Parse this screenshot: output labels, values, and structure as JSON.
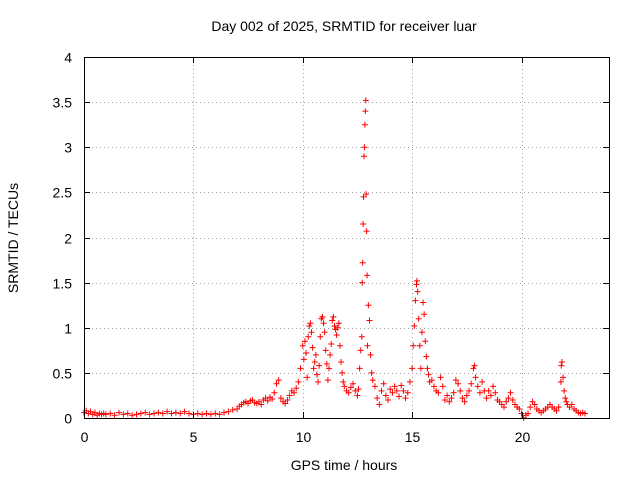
{
  "chart_data": {
    "type": "scatter",
    "title": "Day 002 of 2025, SRMTID for receiver luar",
    "xlabel": "GPS time / hours",
    "ylabel": "SRMTID / TECUs",
    "xlim": [
      0,
      24
    ],
    "ylim": [
      0,
      4
    ],
    "xticks": [
      0,
      5,
      10,
      15,
      20
    ],
    "yticks": [
      0,
      0.5,
      1,
      1.5,
      2,
      2.5,
      3,
      3.5,
      4
    ],
    "grid": true,
    "marker": "+",
    "color": "#ff0000",
    "series": [
      {
        "name": "SRMTID",
        "points": [
          [
            0.0,
            0.06
          ],
          [
            0.1,
            0.08
          ],
          [
            0.2,
            0.05
          ],
          [
            0.3,
            0.07
          ],
          [
            0.4,
            0.04
          ],
          [
            0.5,
            0.06
          ],
          [
            0.6,
            0.03
          ],
          [
            0.7,
            0.05
          ],
          [
            0.8,
            0.04
          ],
          [
            0.9,
            0.05
          ],
          [
            1.0,
            0.04
          ],
          [
            1.2,
            0.05
          ],
          [
            1.4,
            0.03
          ],
          [
            1.6,
            0.06
          ],
          [
            1.8,
            0.04
          ],
          [
            2.0,
            0.05
          ],
          [
            2.2,
            0.03
          ],
          [
            2.4,
            0.04
          ],
          [
            2.6,
            0.05
          ],
          [
            2.8,
            0.06
          ],
          [
            3.0,
            0.04
          ],
          [
            3.2,
            0.05
          ],
          [
            3.4,
            0.06
          ],
          [
            3.6,
            0.05
          ],
          [
            3.8,
            0.07
          ],
          [
            4.0,
            0.05
          ],
          [
            4.2,
            0.06
          ],
          [
            4.4,
            0.05
          ],
          [
            4.6,
            0.07
          ],
          [
            4.8,
            0.05
          ],
          [
            5.0,
            0.04
          ],
          [
            5.2,
            0.05
          ],
          [
            5.4,
            0.04
          ],
          [
            5.6,
            0.05
          ],
          [
            5.8,
            0.04
          ],
          [
            6.0,
            0.05
          ],
          [
            6.2,
            0.04
          ],
          [
            6.4,
            0.06
          ],
          [
            6.6,
            0.07
          ],
          [
            6.8,
            0.09
          ],
          [
            7.0,
            0.1
          ],
          [
            7.1,
            0.13
          ],
          [
            7.2,
            0.15
          ],
          [
            7.3,
            0.17
          ],
          [
            7.4,
            0.18
          ],
          [
            7.5,
            0.16
          ],
          [
            7.6,
            0.19
          ],
          [
            7.7,
            0.2
          ],
          [
            7.8,
            0.17
          ],
          [
            7.9,
            0.16
          ],
          [
            8.0,
            0.18
          ],
          [
            8.1,
            0.15
          ],
          [
            8.2,
            0.2
          ],
          [
            8.3,
            0.22
          ],
          [
            8.4,
            0.19
          ],
          [
            8.5,
            0.23
          ],
          [
            8.6,
            0.21
          ],
          [
            8.7,
            0.28
          ],
          [
            8.8,
            0.38
          ],
          [
            8.9,
            0.42
          ],
          [
            9.0,
            0.22
          ],
          [
            9.1,
            0.18
          ],
          [
            9.2,
            0.16
          ],
          [
            9.3,
            0.2
          ],
          [
            9.4,
            0.25
          ],
          [
            9.5,
            0.3
          ],
          [
            9.6,
            0.28
          ],
          [
            9.7,
            0.33
          ],
          [
            9.8,
            0.4
          ],
          [
            9.9,
            0.55
          ],
          [
            10.0,
            0.8
          ],
          [
            10.05,
            0.65
          ],
          [
            10.1,
            0.85
          ],
          [
            10.15,
            0.72
          ],
          [
            10.2,
            0.45
          ],
          [
            10.25,
            0.9
          ],
          [
            10.3,
            1.02
          ],
          [
            10.35,
            1.05
          ],
          [
            10.4,
            0.95
          ],
          [
            10.45,
            0.78
          ],
          [
            10.5,
            0.55
          ],
          [
            10.55,
            0.62
          ],
          [
            10.6,
            0.7
          ],
          [
            10.65,
            0.48
          ],
          [
            10.7,
            0.4
          ],
          [
            10.75,
            0.58
          ],
          [
            10.8,
            0.9
          ],
          [
            10.85,
            1.1
          ],
          [
            10.9,
            1.12
          ],
          [
            10.95,
            1.05
          ],
          [
            11.0,
            0.95
          ],
          [
            11.05,
            0.75
          ],
          [
            11.1,
            0.6
          ],
          [
            11.15,
            0.42
          ],
          [
            11.2,
            0.55
          ],
          [
            11.25,
            0.7
          ],
          [
            11.3,
            0.82
          ],
          [
            11.35,
            1.08
          ],
          [
            11.4,
            1.12
          ],
          [
            11.45,
            1.02
          ],
          [
            11.5,
            0.98
          ],
          [
            11.55,
            0.92
          ],
          [
            11.6,
            1.0
          ],
          [
            11.65,
            1.05
          ],
          [
            11.7,
            0.8
          ],
          [
            11.75,
            0.62
          ],
          [
            11.8,
            0.5
          ],
          [
            11.85,
            0.4
          ],
          [
            11.9,
            0.35
          ],
          [
            12.0,
            0.3
          ],
          [
            12.1,
            0.28
          ],
          [
            12.2,
            0.34
          ],
          [
            12.3,
            0.38
          ],
          [
            12.4,
            0.3
          ],
          [
            12.5,
            0.25
          ],
          [
            12.55,
            0.32
          ],
          [
            12.6,
            0.55
          ],
          [
            12.65,
            0.75
          ],
          [
            12.7,
            0.9
          ],
          [
            12.72,
            1.5
          ],
          [
            12.74,
            1.72
          ],
          [
            12.76,
            2.15
          ],
          [
            12.78,
            2.45
          ],
          [
            12.8,
            2.9
          ],
          [
            12.82,
            3.0
          ],
          [
            12.84,
            3.25
          ],
          [
            12.86,
            3.4
          ],
          [
            12.88,
            3.52
          ],
          [
            12.9,
            2.48
          ],
          [
            12.92,
            2.07
          ],
          [
            12.94,
            1.58
          ],
          [
            12.96,
            0.8
          ],
          [
            13.0,
            1.25
          ],
          [
            13.05,
            1.08
          ],
          [
            13.1,
            0.7
          ],
          [
            13.15,
            0.5
          ],
          [
            13.2,
            0.42
          ],
          [
            13.3,
            0.35
          ],
          [
            13.4,
            0.22
          ],
          [
            13.5,
            0.15
          ],
          [
            13.6,
            0.3
          ],
          [
            13.7,
            0.38
          ],
          [
            13.8,
            0.25
          ],
          [
            13.9,
            0.2
          ],
          [
            14.0,
            0.32
          ],
          [
            14.1,
            0.28
          ],
          [
            14.2,
            0.35
          ],
          [
            14.3,
            0.3
          ],
          [
            14.4,
            0.24
          ],
          [
            14.5,
            0.36
          ],
          [
            14.6,
            0.3
          ],
          [
            14.7,
            0.22
          ],
          [
            14.8,
            0.28
          ],
          [
            14.9,
            0.4
          ],
          [
            15.0,
            0.55
          ],
          [
            15.05,
            0.8
          ],
          [
            15.1,
            1.02
          ],
          [
            15.15,
            1.3
          ],
          [
            15.2,
            1.48
          ],
          [
            15.22,
            1.52
          ],
          [
            15.25,
            1.4
          ],
          [
            15.3,
            1.1
          ],
          [
            15.35,
            0.8
          ],
          [
            15.4,
            0.55
          ],
          [
            15.45,
            0.95
          ],
          [
            15.5,
            1.28
          ],
          [
            15.55,
            1.15
          ],
          [
            15.6,
            0.85
          ],
          [
            15.65,
            0.68
          ],
          [
            15.7,
            0.55
          ],
          [
            15.75,
            0.48
          ],
          [
            15.8,
            0.4
          ],
          [
            15.9,
            0.42
          ],
          [
            16.0,
            0.35
          ],
          [
            16.1,
            0.3
          ],
          [
            16.2,
            0.28
          ],
          [
            16.3,
            0.45
          ],
          [
            16.4,
            0.35
          ],
          [
            16.5,
            0.2
          ],
          [
            16.6,
            0.25
          ],
          [
            16.7,
            0.18
          ],
          [
            16.8,
            0.22
          ],
          [
            16.9,
            0.28
          ],
          [
            17.0,
            0.42
          ],
          [
            17.1,
            0.38
          ],
          [
            17.2,
            0.3
          ],
          [
            17.3,
            0.22
          ],
          [
            17.4,
            0.18
          ],
          [
            17.5,
            0.25
          ],
          [
            17.6,
            0.3
          ],
          [
            17.7,
            0.38
          ],
          [
            17.8,
            0.55
          ],
          [
            17.85,
            0.58
          ],
          [
            17.9,
            0.45
          ],
          [
            18.0,
            0.35
          ],
          [
            18.1,
            0.28
          ],
          [
            18.2,
            0.4
          ],
          [
            18.3,
            0.3
          ],
          [
            18.4,
            0.22
          ],
          [
            18.5,
            0.3
          ],
          [
            18.6,
            0.25
          ],
          [
            18.7,
            0.35
          ],
          [
            18.8,
            0.28
          ],
          [
            18.9,
            0.2
          ],
          [
            19.0,
            0.18
          ],
          [
            19.1,
            0.15
          ],
          [
            19.2,
            0.12
          ],
          [
            19.3,
            0.18
          ],
          [
            19.4,
            0.22
          ],
          [
            19.5,
            0.28
          ],
          [
            19.6,
            0.2
          ],
          [
            19.7,
            0.15
          ],
          [
            19.8,
            0.12
          ],
          [
            19.9,
            0.1
          ],
          [
            20.0,
            0.05
          ],
          [
            20.1,
            0.0
          ],
          [
            20.2,
            0.03
          ],
          [
            20.3,
            0.05
          ],
          [
            20.4,
            0.12
          ],
          [
            20.5,
            0.18
          ],
          [
            20.6,
            0.15
          ],
          [
            20.7,
            0.1
          ],
          [
            20.8,
            0.08
          ],
          [
            20.9,
            0.06
          ],
          [
            21.0,
            0.08
          ],
          [
            21.1,
            0.1
          ],
          [
            21.2,
            0.12
          ],
          [
            21.3,
            0.15
          ],
          [
            21.4,
            0.12
          ],
          [
            21.5,
            0.1
          ],
          [
            21.6,
            0.08
          ],
          [
            21.7,
            0.12
          ],
          [
            21.8,
            0.4
          ],
          [
            21.82,
            0.58
          ],
          [
            21.85,
            0.62
          ],
          [
            21.9,
            0.45
          ],
          [
            21.95,
            0.3
          ],
          [
            22.0,
            0.22
          ],
          [
            22.05,
            0.18
          ],
          [
            22.1,
            0.15
          ],
          [
            22.2,
            0.12
          ],
          [
            22.3,
            0.15
          ],
          [
            22.4,
            0.1
          ],
          [
            22.5,
            0.08
          ],
          [
            22.6,
            0.06
          ],
          [
            22.7,
            0.05
          ],
          [
            22.8,
            0.06
          ],
          [
            22.9,
            0.05
          ]
        ]
      }
    ]
  }
}
